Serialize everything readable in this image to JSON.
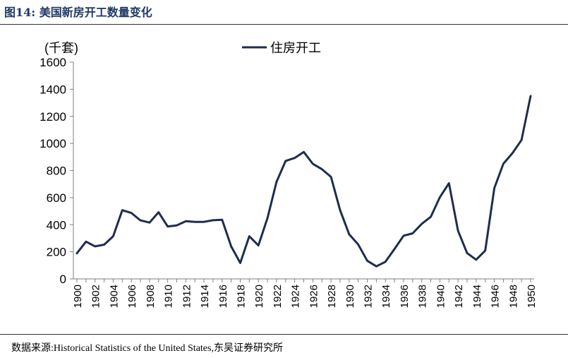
{
  "figure": {
    "title": "图14:  美国新房开工数量变化",
    "source": "数据来源:Historical Statistics of the United States,东吴证券研究所"
  },
  "chart_data": {
    "type": "line",
    "unit_label": "(千套)",
    "legend": {
      "entries": [
        "住房开工"
      ],
      "position": "top-center"
    },
    "ylim": [
      0,
      1600
    ],
    "yticks": [
      0,
      200,
      400,
      600,
      800,
      1000,
      1200,
      1400,
      1600
    ],
    "xticks": [
      1900,
      1902,
      1904,
      1906,
      1908,
      1910,
      1912,
      1914,
      1916,
      1918,
      1920,
      1922,
      1924,
      1926,
      1928,
      1930,
      1932,
      1934,
      1936,
      1938,
      1940,
      1942,
      1944,
      1946,
      1948,
      1950
    ],
    "grid": false,
    "line_color": "#1f2d4d",
    "x": [
      1900,
      1901,
      1902,
      1903,
      1904,
      1905,
      1906,
      1907,
      1908,
      1909,
      1910,
      1911,
      1912,
      1913,
      1914,
      1915,
      1916,
      1917,
      1918,
      1919,
      1920,
      1921,
      1922,
      1923,
      1924,
      1925,
      1926,
      1927,
      1928,
      1929,
      1930,
      1931,
      1932,
      1933,
      1934,
      1935,
      1936,
      1937,
      1938,
      1939,
      1940,
      1941,
      1942,
      1943,
      1944,
      1945,
      1946,
      1947,
      1948,
      1949,
      1950
    ],
    "series": [
      {
        "name": "住房开工",
        "values": [
          189,
          275,
          240,
          253,
          315,
          507,
          487,
          432,
          416,
          492,
          387,
          395,
          426,
          421,
          421,
          433,
          437,
          240,
          118,
          315,
          247,
          449,
          716,
          871,
          893,
          937,
          849,
          810,
          753,
          509,
          330,
          254,
          134,
          93,
          126,
          221,
          319,
          336,
          406,
          458,
          603,
          706,
          356,
          191,
          142,
          209,
          670,
          850,
          928,
          1025,
          1350
        ]
      }
    ]
  }
}
